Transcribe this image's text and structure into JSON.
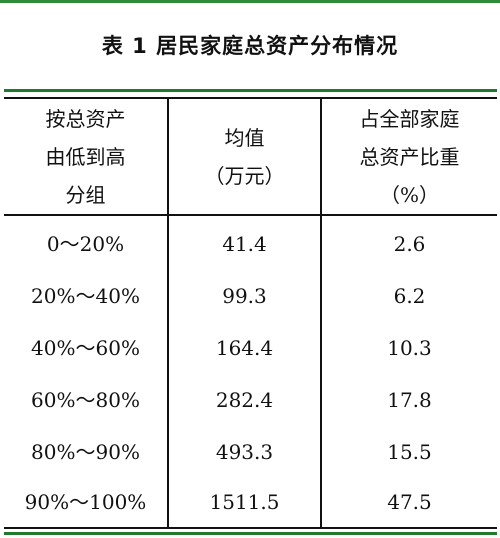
{
  "table": {
    "title": "表 1  居民家庭总资产分布情况",
    "headers": [
      [
        "按总资产",
        "由低到高",
        "分组"
      ],
      [
        "均值",
        "（万元）"
      ],
      [
        "占全部家庭",
        "总资产比重",
        "（%）"
      ]
    ],
    "rows": [
      {
        "group": "0～20%",
        "mean": "41.4",
        "share": "2.6"
      },
      {
        "group": "20%～40%",
        "mean": "99.3",
        "share": "6.2"
      },
      {
        "group": "40%～60%",
        "mean": "164.4",
        "share": "10.3"
      },
      {
        "group": "60%～80%",
        "mean": "282.4",
        "share": "17.8"
      },
      {
        "group": "80%～90%",
        "mean": "493.3",
        "share": "15.5"
      },
      {
        "group": "90%～100%",
        "mean": "1511.5",
        "share": "47.5"
      }
    ]
  },
  "colors": {
    "accent_green": "#1f7a2e",
    "top_green": "#2e8b3a",
    "text": "#111111"
  }
}
